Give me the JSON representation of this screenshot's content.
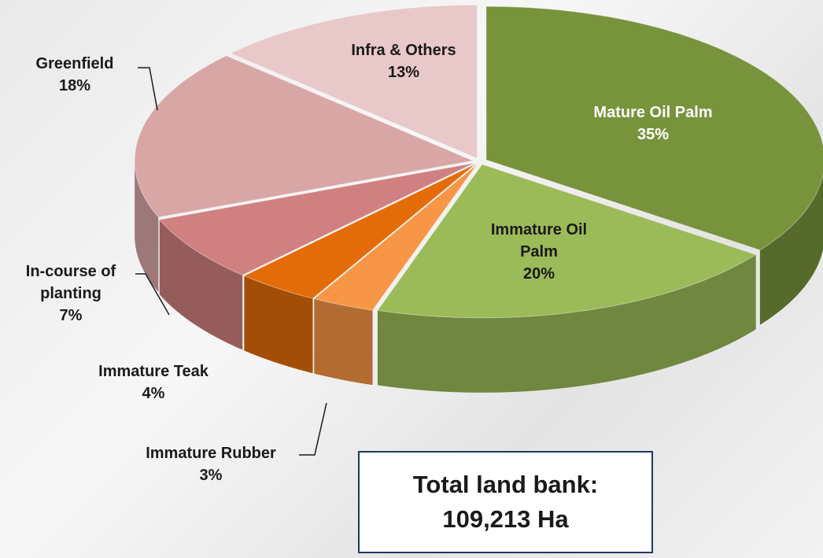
{
  "chart_data": {
    "type": "pie3d",
    "categories": [
      "Mature Oil Palm",
      "Immature  Oil Palm",
      "Immature Rubber",
      "Immature Teak",
      "In-course of planting",
      "Greenfield",
      "Infra & Others"
    ],
    "values": [
      35,
      20,
      3,
      4,
      7,
      18,
      13
    ],
    "value_labels": [
      "35%",
      "20%",
      "3%",
      "4%",
      "7%",
      "18%",
      "13%"
    ],
    "colors": [
      "#77933c",
      "#9bbb59",
      "#f79646",
      "#e36c09",
      "#d08080",
      "#d9a6a6",
      "#e8c8c8"
    ],
    "annotation": "Total land bank: 109,213 Ha"
  }
}
